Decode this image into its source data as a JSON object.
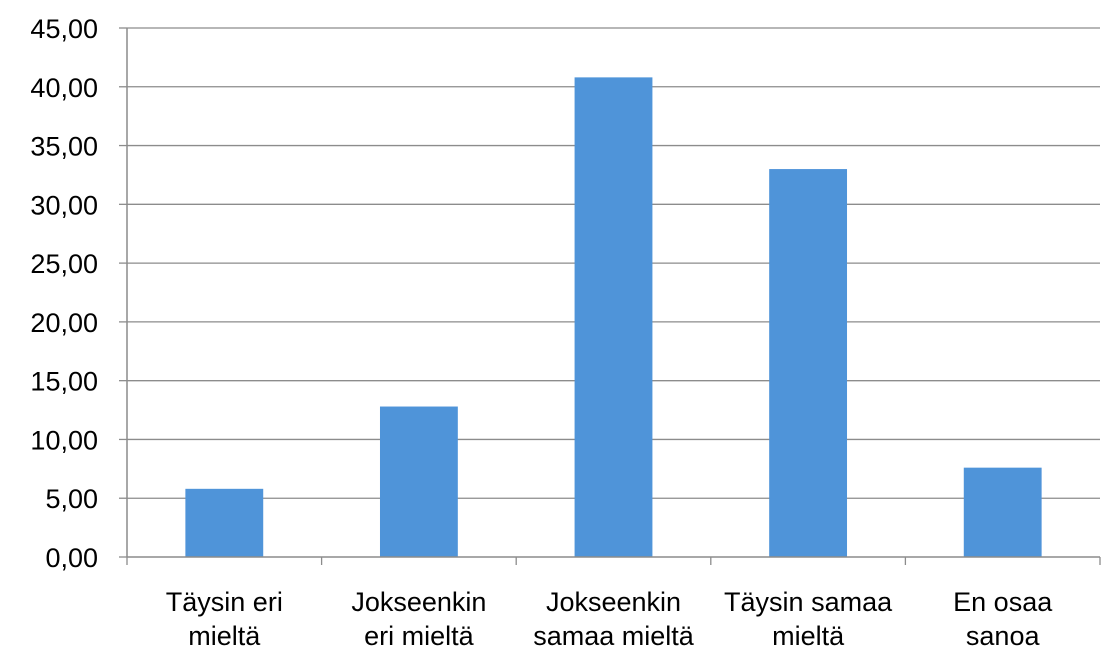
{
  "chart_data": {
    "type": "bar",
    "title": "",
    "xlabel": "",
    "ylabel": "",
    "categories": [
      [
        "Täysin eri",
        "mieltä"
      ],
      [
        "Jokseenkin",
        "eri mieltä"
      ],
      [
        "Jokseenkin",
        "samaa mieltä"
      ],
      [
        "Täysin samaa",
        "mieltä"
      ],
      [
        "En osaa",
        "sanoa"
      ]
    ],
    "values": [
      5.8,
      12.8,
      40.8,
      33.0,
      7.6
    ],
    "ylim": [
      0,
      45
    ],
    "ytick_step": 5,
    "yticks": [
      "0,00",
      "5,00",
      "10,00",
      "15,00",
      "20,00",
      "25,00",
      "30,00",
      "35,00",
      "40,00",
      "45,00"
    ],
    "grid": true,
    "legend": "none",
    "colors": {
      "bar": "#4f94d9",
      "grid": "#8c8c8c",
      "axis": "#8c8c8c"
    }
  }
}
